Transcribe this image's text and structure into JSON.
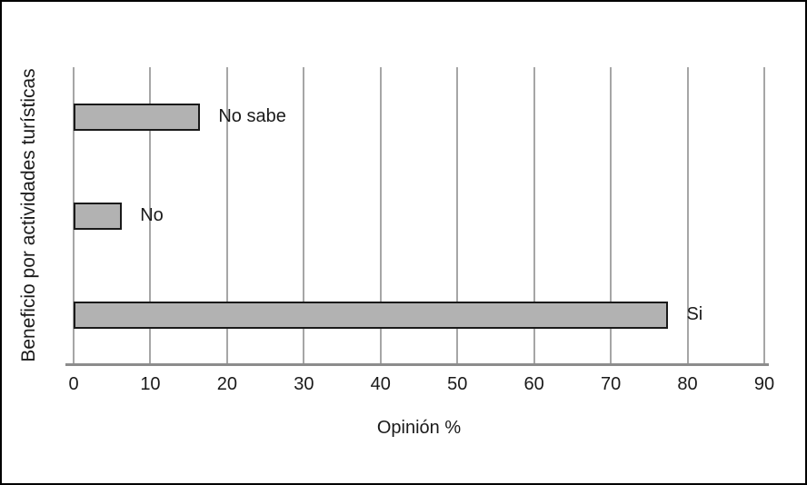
{
  "figure": {
    "background": "#ffffff",
    "border_color": "#000000"
  },
  "chart_data": {
    "type": "bar",
    "orientation": "horizontal",
    "title": "",
    "xlabel": "Opinión %",
    "ylabel": "Beneficio por actividades turísticas",
    "categories": [
      "No sabe",
      "No",
      "Si"
    ],
    "values": [
      16.5,
      6.3,
      77.5
    ],
    "xlim": [
      0,
      90
    ],
    "xticks": [
      0,
      10,
      20,
      30,
      40,
      50,
      60,
      70,
      80,
      90
    ],
    "grid": "vertical",
    "legend": "none",
    "bar_fill_color": "#b2b2b2",
    "bar_border_color": "#1a1a1a",
    "gridline_color": "#a6a6a6",
    "axis_line_color": "#8c8c8c",
    "text_color": "#1a1a1a"
  }
}
